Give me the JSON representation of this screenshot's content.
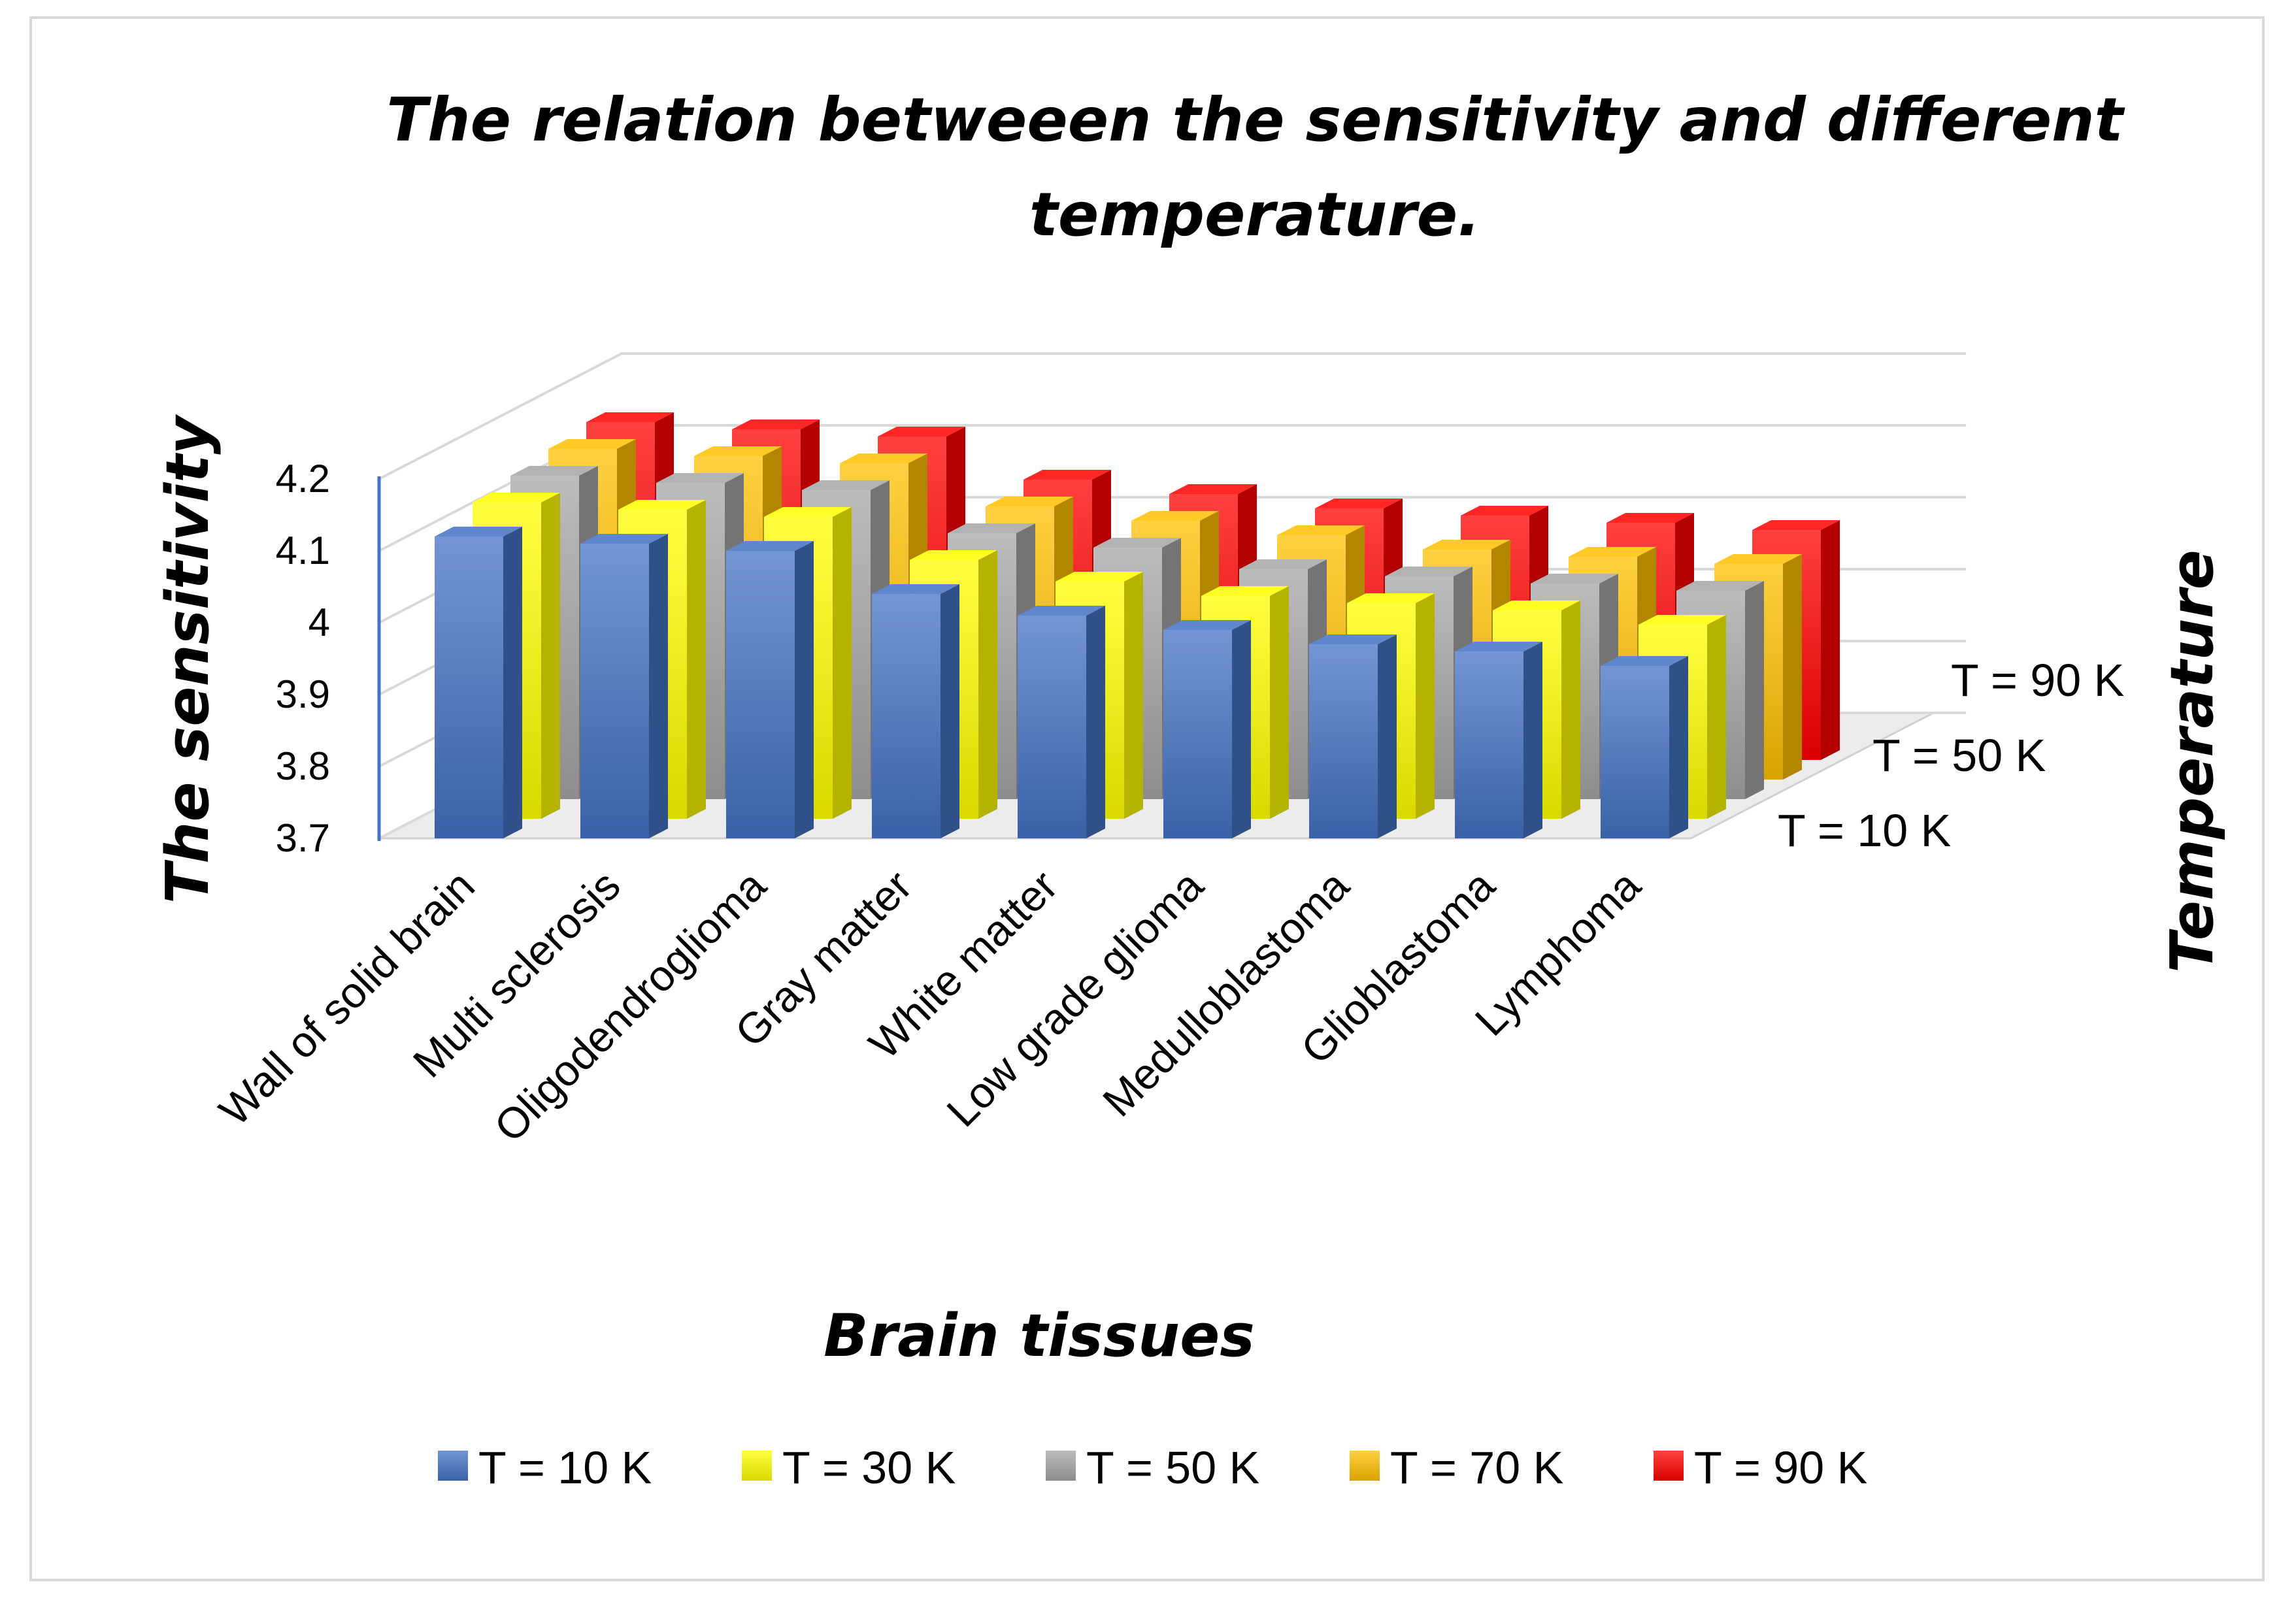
{
  "chart_data": {
    "type": "bar",
    "style": "3d-column",
    "title": "The relation betweeen the sensitivity and different temperature.",
    "xlabel": "Brain tissues",
    "ylabel": "The sensitivity",
    "zlabel": "Temperature",
    "ylim": [
      3.7,
      4.2
    ],
    "yticks": [
      "3.7",
      "3.8",
      "3.9",
      "4",
      "4.1",
      "4.2"
    ],
    "categories": [
      "Wall of solid brain",
      "Multi sclerosis",
      "Oligodendroglioma",
      "Gray matter",
      "White matter",
      "Low grade glioma",
      "Medulloblastoma",
      "Glioblastoma",
      "Lymphoma"
    ],
    "depth_labels": [
      "T = 10 K",
      "T = 50 K",
      "T = 90 K"
    ],
    "series": [
      {
        "name": "T = 10 K",
        "color": "#4472c4",
        "values": [
          4.12,
          4.11,
          4.1,
          4.04,
          4.01,
          3.99,
          3.97,
          3.96,
          3.94
        ]
      },
      {
        "name": "T = 30 K",
        "color": "#ffff00",
        "values": [
          4.14,
          4.13,
          4.12,
          4.06,
          4.03,
          4.01,
          4.0,
          3.99,
          3.97
        ]
      },
      {
        "name": "T = 50 K",
        "color": "#a6a6a6",
        "values": [
          4.15,
          4.14,
          4.13,
          4.07,
          4.05,
          4.02,
          4.01,
          4.0,
          3.99
        ]
      },
      {
        "name": "T = 70 K",
        "color": "#ffc000",
        "values": [
          4.16,
          4.15,
          4.14,
          4.08,
          4.06,
          4.04,
          4.02,
          4.01,
          4.0
        ]
      },
      {
        "name": "T = 90 K",
        "color": "#ff0000",
        "values": [
          4.17,
          4.16,
          4.15,
          4.09,
          4.07,
          4.05,
          4.04,
          4.03,
          4.02
        ]
      }
    ],
    "legend_position": "bottom"
  }
}
